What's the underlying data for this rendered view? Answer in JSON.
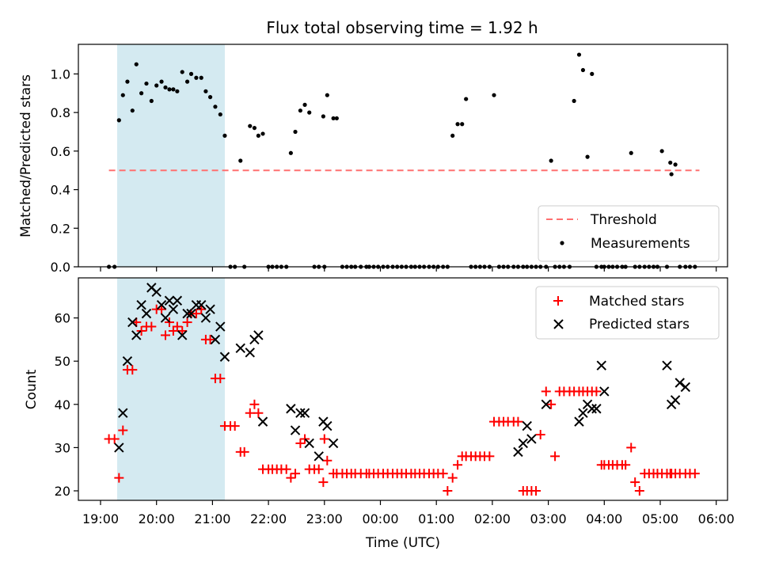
{
  "chart_data": [
    {
      "type": "scatter",
      "title": "Flux total observing time = 1.92 h",
      "xlabel": "",
      "ylabel": "Matched/Predicted stars",
      "ylim": [
        0,
        1.15
      ],
      "yticks": [
        "0.0",
        "0.2",
        "0.4",
        "0.6",
        "0.8",
        "1.0"
      ],
      "x_unit": "hours since 19:00 UTC",
      "xlim": [
        -0.4,
        11.2
      ],
      "shaded_span": [
        0.33,
        2.22
      ],
      "threshold": {
        "name": "Threshold",
        "y": 0.5,
        "x_range": [
          0.15,
          10.7
        ],
        "color": "#ff7070"
      },
      "series": [
        {
          "name": "Measurements",
          "color": "#000000",
          "x": [
            0.15,
            0.25,
            0.33,
            0.4,
            0.48,
            0.57,
            0.64,
            0.73,
            0.82,
            0.91,
            1.0,
            1.09,
            1.16,
            1.23,
            1.3,
            1.37,
            1.46,
            1.55,
            1.62,
            1.71,
            1.8,
            1.88,
            1.96,
            2.05,
            2.14,
            2.22,
            2.32,
            2.4,
            2.5,
            2.57,
            2.67,
            2.75,
            2.82,
            2.9,
            3.0,
            3.07,
            3.15,
            3.23,
            3.32,
            3.4,
            3.48,
            3.57,
            3.65,
            3.73,
            3.82,
            3.9,
            3.98,
            4.0,
            4.05,
            4.16,
            4.22,
            4.32,
            4.4,
            4.48,
            4.55,
            4.65,
            4.75,
            4.8,
            4.88,
            4.96,
            5.05,
            5.13,
            5.22,
            5.3,
            5.38,
            5.46,
            5.55,
            5.62,
            5.7,
            5.78,
            5.87,
            5.95,
            6.03,
            6.12,
            6.2,
            6.29,
            6.38,
            6.46,
            6.53,
            6.62,
            6.7,
            6.78,
            6.86,
            6.95,
            7.03,
            7.12,
            7.2,
            7.28,
            7.38,
            7.46,
            7.55,
            7.62,
            7.7,
            7.78,
            7.86,
            7.96,
            8.05,
            8.12,
            8.2,
            8.28,
            8.38,
            8.46,
            8.55,
            8.62,
            8.7,
            8.78,
            8.86,
            8.95,
            9.0,
            9.08,
            9.15,
            9.23,
            9.32,
            9.38,
            9.48,
            9.55,
            9.63,
            9.72,
            9.8,
            9.88,
            9.95,
            10.03,
            10.12,
            10.18,
            10.2,
            10.27,
            10.35,
            10.45,
            10.53,
            10.62
          ],
          "y": [
            0,
            0,
            0.76,
            0.89,
            0.96,
            0.81,
            1.05,
            0.9,
            0.95,
            0.86,
            0.94,
            0.96,
            0.93,
            0.92,
            0.92,
            0.91,
            1.01,
            0.96,
            1.0,
            0.98,
            0.98,
            0.91,
            0.88,
            0.83,
            0.79,
            0.68,
            0,
            0,
            0.55,
            0,
            0.73,
            0.72,
            0.68,
            0.69,
            0,
            0,
            0,
            0,
            0,
            0.59,
            0.7,
            0.81,
            0.84,
            0.8,
            0,
            0,
            0.78,
            0,
            0.89,
            0.77,
            0.77,
            0,
            0,
            0,
            0,
            0,
            0,
            0,
            0,
            0,
            0,
            0,
            0,
            0,
            0,
            0,
            0,
            0,
            0,
            0,
            0,
            0,
            0,
            0,
            0,
            0.68,
            0.74,
            0.74,
            0.87,
            0,
            0,
            0,
            0,
            0,
            0.89,
            0,
            0,
            0,
            0,
            0,
            0,
            0,
            0,
            0,
            0,
            0,
            0.55,
            0,
            0,
            0,
            0,
            0.86,
            1.1,
            1.02,
            0.57,
            1.0,
            0,
            0,
            0,
            0,
            0,
            0,
            0,
            0,
            0.59,
            0,
            0,
            0,
            0,
            0,
            0,
            0.6,
            0,
            0.54,
            0.48,
            0.53,
            0,
            0,
            0,
            0
          ]
        }
      ],
      "legend": {
        "placement": "lower right",
        "entries": [
          "Threshold",
          "Measurements"
        ]
      },
      "grid": false
    },
    {
      "type": "scatter",
      "title": "",
      "xlabel": "Time (UTC)",
      "ylabel": "Count",
      "ylim": [
        17.5,
        69
      ],
      "yticks": [
        "20",
        "30",
        "40",
        "50",
        "60"
      ],
      "xtick_labels": [
        "19:00",
        "20:00",
        "21:00",
        "22:00",
        "23:00",
        "00:00",
        "01:00",
        "02:00",
        "03:00",
        "04:00",
        "05:00",
        "06:00"
      ],
      "x_unit": "hours since 19:00 UTC",
      "xlim": [
        -0.4,
        11.2
      ],
      "shaded_span": [
        0.33,
        2.22
      ],
      "series": [
        {
          "name": "Matched stars",
          "marker": "+",
          "color": "#ff0000",
          "x": [
            0.15,
            0.25,
            0.33,
            0.4,
            0.48,
            0.57,
            0.64,
            0.73,
            0.82,
            0.91,
            1.0,
            1.09,
            1.16,
            1.23,
            1.3,
            1.37,
            1.46,
            1.55,
            1.62,
            1.71,
            1.8,
            1.88,
            1.96,
            2.05,
            2.14,
            2.22,
            2.32,
            2.4,
            2.5,
            2.57,
            2.67,
            2.75,
            2.82,
            2.9,
            3.0,
            3.07,
            3.15,
            3.23,
            3.32,
            3.4,
            3.48,
            3.57,
            3.65,
            3.73,
            3.82,
            3.9,
            3.98,
            4.0,
            4.05,
            4.16,
            4.22,
            4.32,
            4.4,
            4.48,
            4.55,
            4.65,
            4.75,
            4.8,
            4.88,
            4.96,
            5.05,
            5.13,
            5.22,
            5.3,
            5.38,
            5.46,
            5.55,
            5.62,
            5.7,
            5.78,
            5.87,
            5.95,
            6.03,
            6.12,
            6.2,
            6.29,
            6.38,
            6.46,
            6.53,
            6.62,
            6.7,
            6.78,
            6.86,
            6.95,
            7.03,
            7.12,
            7.2,
            7.28,
            7.38,
            7.46,
            7.55,
            7.62,
            7.7,
            7.78,
            7.86,
            7.96,
            8.05,
            8.12,
            8.2,
            8.28,
            8.38,
            8.46,
            8.55,
            8.62,
            8.7,
            8.78,
            8.86,
            8.95,
            9.0,
            9.08,
            9.15,
            9.23,
            9.32,
            9.38,
            9.48,
            9.55,
            9.63,
            9.72,
            9.8,
            9.88,
            9.95,
            10.03,
            10.12,
            10.18,
            10.2,
            10.27,
            10.35,
            10.45,
            10.53,
            10.62
          ],
          "y": [
            32,
            32,
            23,
            34,
            48,
            48,
            59,
            57,
            58,
            58,
            62,
            62,
            56,
            59,
            57,
            58,
            57,
            59,
            61,
            61,
            62,
            55,
            55,
            46,
            46,
            35,
            35,
            35,
            29,
            29,
            38,
            40,
            38,
            25,
            25,
            25,
            25,
            25,
            25,
            23,
            24,
            31,
            32,
            25,
            25,
            25,
            22,
            32,
            27,
            24,
            24,
            24,
            24,
            24,
            24,
            24,
            24,
            24,
            24,
            24,
            24,
            24,
            24,
            24,
            24,
            24,
            24,
            24,
            24,
            24,
            24,
            24,
            24,
            24,
            20,
            23,
            26,
            28,
            28,
            28,
            28,
            28,
            28,
            28,
            36,
            36,
            36,
            36,
            36,
            36,
            20,
            20,
            20,
            20,
            33,
            43,
            40,
            28,
            43,
            43,
            43,
            43,
            43,
            43,
            43,
            43,
            43,
            26,
            26,
            26,
            26,
            26,
            26,
            26,
            30,
            22,
            20,
            24,
            24,
            24,
            24,
            24,
            24,
            24,
            24,
            24,
            24,
            24,
            24,
            24
          ]
        },
        {
          "name": "Predicted stars",
          "marker": "x",
          "color": "#000000",
          "x": [
            0.33,
            0.4,
            0.48,
            0.57,
            0.64,
            0.73,
            0.82,
            0.91,
            1.0,
            1.09,
            1.16,
            1.23,
            1.3,
            1.37,
            1.46,
            1.55,
            1.62,
            1.71,
            1.8,
            1.88,
            1.96,
            2.05,
            2.14,
            2.22,
            2.5,
            2.67,
            2.75,
            2.82,
            2.9,
            3.4,
            3.48,
            3.57,
            3.65,
            3.73,
            3.9,
            3.98,
            4.05,
            4.16,
            7.46,
            7.55,
            7.62,
            7.7,
            7.96,
            8.55,
            8.62,
            8.7,
            8.78,
            8.86,
            8.95,
            9.0,
            10.12,
            10.2,
            10.27,
            10.35,
            10.45
          ],
          "y": [
            30,
            38,
            50,
            59,
            56,
            63,
            61,
            67,
            66,
            63,
            60,
            64,
            62,
            64,
            56,
            61,
            61,
            63,
            63,
            60,
            62,
            55,
            58,
            51,
            53,
            52,
            55,
            56,
            36,
            39,
            34,
            38,
            38,
            31,
            28,
            36,
            35,
            31,
            29,
            31,
            35,
            32,
            40,
            36,
            38,
            40,
            39,
            39,
            49,
            43,
            49,
            40,
            41,
            45,
            44
          ]
        }
      ],
      "legend": {
        "placement": "upper right",
        "entries": [
          "Matched stars",
          "Predicted stars"
        ]
      },
      "grid": false
    }
  ]
}
